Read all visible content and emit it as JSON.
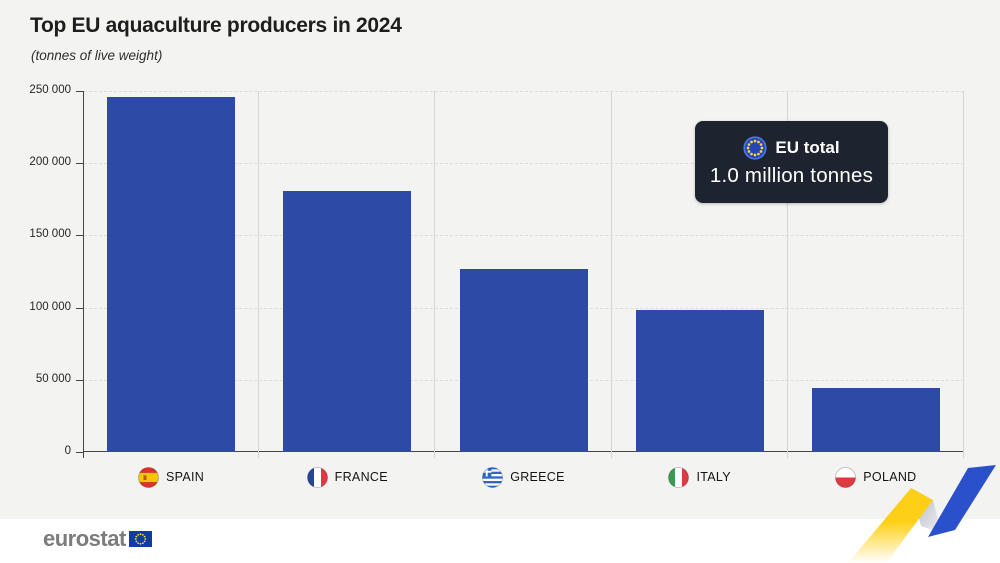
{
  "title": "Top EU aquaculture producers in 2024",
  "subtitle": "(tonnes of live weight)",
  "eu_badge": {
    "flag_icon": "eu-flag-icon",
    "label": "EU total",
    "value": "1.0 million tonnes"
  },
  "footer": {
    "brand": "eurostat",
    "flag_icon": "eu-flag-icon"
  },
  "colors": {
    "background": "#f3f3f1",
    "bar": "#2d4ba6",
    "badge_bg": "#1d2430",
    "eu_blue": "#0e3ca5",
    "star_yellow": "#ffd93b",
    "ribbon_yellow": "#fdd017",
    "ribbon_blue": "#2b50cc",
    "footer_bg": "#ffffff"
  },
  "chart_data": {
    "type": "bar",
    "categories": [
      "SPAIN",
      "FRANCE",
      "GREECE",
      "ITALY",
      "POLAND"
    ],
    "values": [
      246000,
      181000,
      127000,
      98000,
      44000
    ],
    "flag_icons": [
      "spain-flag-icon",
      "france-flag-icon",
      "greece-flag-icon",
      "italy-flag-icon",
      "poland-flag-icon"
    ],
    "title": "Top EU aquaculture producers in 2024",
    "subtitle": "(tonnes of live weight)",
    "xlabel": "",
    "ylabel": "",
    "ylim": [
      0,
      250000
    ],
    "ytick_interval": 50000,
    "ytick_labels": [
      "0",
      "50 000",
      "100 000",
      "150 000",
      "200 000",
      "250 000"
    ],
    "legend": "none",
    "grid": {
      "horizontal": "dashed",
      "vertical_separators": true
    },
    "annotation": {
      "label": "EU total",
      "value": "1.0 million tonnes",
      "value_tonnes": 1000000
    }
  }
}
